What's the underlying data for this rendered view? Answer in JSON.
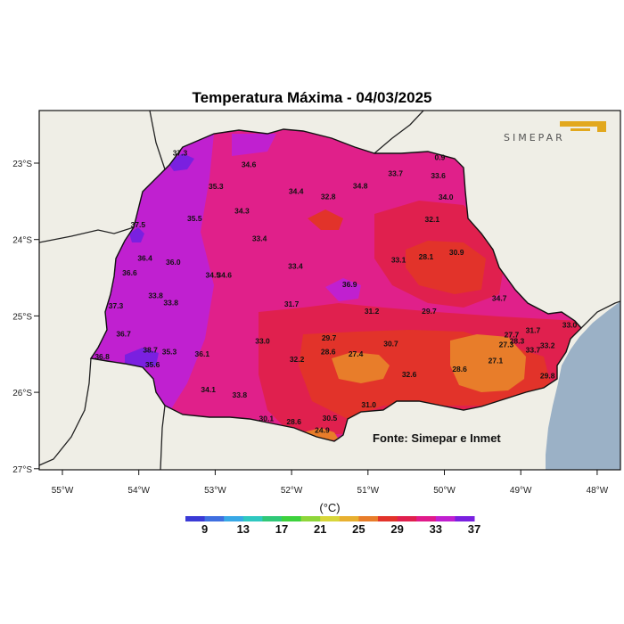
{
  "title": "Temperatura Máxima - 04/03/2025",
  "source_label": "Fonte: Simepar e Inmet",
  "logo_text": "SIMEPAR",
  "unit_label": "(°C)",
  "lat_ticks": [
    "23°S",
    "24°S",
    "25°S",
    "26°S",
    "27°S"
  ],
  "lon_ticks": [
    "55°W",
    "54°W",
    "53°W",
    "52°W",
    "51°W",
    "50°W",
    "49°W",
    "48°W"
  ],
  "legend": {
    "colors": [
      "#3a3ad6",
      "#3f6fe0",
      "#38a8e6",
      "#2fc8c0",
      "#30c878",
      "#3dd23d",
      "#8ed63a",
      "#d8d63a",
      "#e8b030",
      "#e87d2a",
      "#e2332a",
      "#e0204e",
      "#e01a8a",
      "#c020d0",
      "#7a20e0"
    ],
    "labels": [
      "9",
      "13",
      "17",
      "21",
      "25",
      "29",
      "33",
      "37"
    ]
  },
  "stations": [
    {
      "v": "37.3",
      "lon": -53.46,
      "lat": -22.9
    },
    {
      "v": "34.6",
      "lon": -52.56,
      "lat": -23.05
    },
    {
      "v": "35.3",
      "lon": -52.99,
      "lat": -23.34
    },
    {
      "v": "34.4",
      "lon": -51.94,
      "lat": -23.4
    },
    {
      "v": "32.8",
      "lon": -51.52,
      "lat": -23.47
    },
    {
      "v": "34.8",
      "lon": -51.1,
      "lat": -23.33
    },
    {
      "v": "33.7",
      "lon": -50.64,
      "lat": -23.17
    },
    {
      "v": "33.6",
      "lon": -50.08,
      "lat": -23.2
    },
    {
      "v": "34.0",
      "lon": -49.98,
      "lat": -23.48
    },
    {
      "v": "32.1",
      "lon": -50.16,
      "lat": -23.77
    },
    {
      "v": "34.3",
      "lon": -52.65,
      "lat": -23.66
    },
    {
      "v": "35.5",
      "lon": -53.27,
      "lat": -23.76
    },
    {
      "v": "37.5",
      "lon": -54.01,
      "lat": -23.84
    },
    {
      "v": "33.4",
      "lon": -52.42,
      "lat": -24.02
    },
    {
      "v": "36.4",
      "lon": -53.92,
      "lat": -24.28
    },
    {
      "v": "36.0",
      "lon": -53.55,
      "lat": -24.33
    },
    {
      "v": "36.6",
      "lon": -54.12,
      "lat": -24.47
    },
    {
      "v": "34.5",
      "lon": -53.03,
      "lat": -24.5
    },
    {
      "v": "34.6",
      "lon": -52.88,
      "lat": -24.5
    },
    {
      "v": "33.4",
      "lon": -51.95,
      "lat": -24.38
    },
    {
      "v": "33.1",
      "lon": -50.6,
      "lat": -24.3
    },
    {
      "v": "28.1",
      "lon": -50.24,
      "lat": -24.26
    },
    {
      "v": "30.9",
      "lon": -49.84,
      "lat": -24.2
    },
    {
      "v": "36.9",
      "lon": -51.24,
      "lat": -24.62
    },
    {
      "v": "33.8",
      "lon": -53.78,
      "lat": -24.77
    },
    {
      "v": "33.8",
      "lon": -53.58,
      "lat": -24.86
    },
    {
      "v": "37.3",
      "lon": -54.3,
      "lat": -24.9
    },
    {
      "v": "31.7",
      "lon": -52.0,
      "lat": -24.88
    },
    {
      "v": "31.2",
      "lon": -50.95,
      "lat": -24.97
    },
    {
      "v": "29.7",
      "lon": -50.2,
      "lat": -24.97
    },
    {
      "v": "34.7",
      "lon": -49.28,
      "lat": -24.8
    },
    {
      "v": "36.7",
      "lon": -54.2,
      "lat": -25.27
    },
    {
      "v": "33.0",
      "lon": -52.38,
      "lat": -25.36
    },
    {
      "v": "29.7",
      "lon": -51.51,
      "lat": -25.32
    },
    {
      "v": "30.7",
      "lon": -50.7,
      "lat": -25.4
    },
    {
      "v": "27.7",
      "lon": -49.12,
      "lat": -25.28
    },
    {
      "v": "28.3",
      "lon": -49.05,
      "lat": -25.36
    },
    {
      "v": "27.3",
      "lon": -49.19,
      "lat": -25.41
    },
    {
      "v": "31.7",
      "lon": -48.84,
      "lat": -25.22
    },
    {
      "v": "33.0",
      "lon": -48.36,
      "lat": -25.15
    },
    {
      "v": "33.2",
      "lon": -48.65,
      "lat": -25.42
    },
    {
      "v": "33.7",
      "lon": -48.84,
      "lat": -25.48
    },
    {
      "v": "38.7",
      "lon": -53.85,
      "lat": -25.48
    },
    {
      "v": "35.3",
      "lon": -53.6,
      "lat": -25.5
    },
    {
      "v": "36.1",
      "lon": -53.17,
      "lat": -25.53
    },
    {
      "v": "36.8",
      "lon": -54.48,
      "lat": -25.57
    },
    {
      "v": "35.6",
      "lon": -53.82,
      "lat": -25.67
    },
    {
      "v": "28.6",
      "lon": -51.52,
      "lat": -25.5
    },
    {
      "v": "27.4",
      "lon": -51.16,
      "lat": -25.53
    },
    {
      "v": "32.2",
      "lon": -51.93,
      "lat": -25.6
    },
    {
      "v": "27.1",
      "lon": -49.33,
      "lat": -25.62
    },
    {
      "v": "28.6",
      "lon": -49.8,
      "lat": -25.73
    },
    {
      "v": "32.6",
      "lon": -50.46,
      "lat": -25.8
    },
    {
      "v": "29.8",
      "lon": -48.65,
      "lat": -25.82
    },
    {
      "v": "34.1",
      "lon": -53.09,
      "lat": -26.0
    },
    {
      "v": "33.8",
      "lon": -52.68,
      "lat": -26.07
    },
    {
      "v": "31.0",
      "lon": -50.99,
      "lat": -26.2
    },
    {
      "v": "30.1",
      "lon": -52.33,
      "lat": -26.38
    },
    {
      "v": "28.6",
      "lon": -51.97,
      "lat": -26.42
    },
    {
      "v": "30.5",
      "lon": -51.5,
      "lat": -26.37
    },
    {
      "v": "24.9",
      "lon": -51.6,
      "lat": -26.53
    },
    {
      "v": "0.9",
      "lon": -50.06,
      "lat": -22.96
    }
  ]
}
